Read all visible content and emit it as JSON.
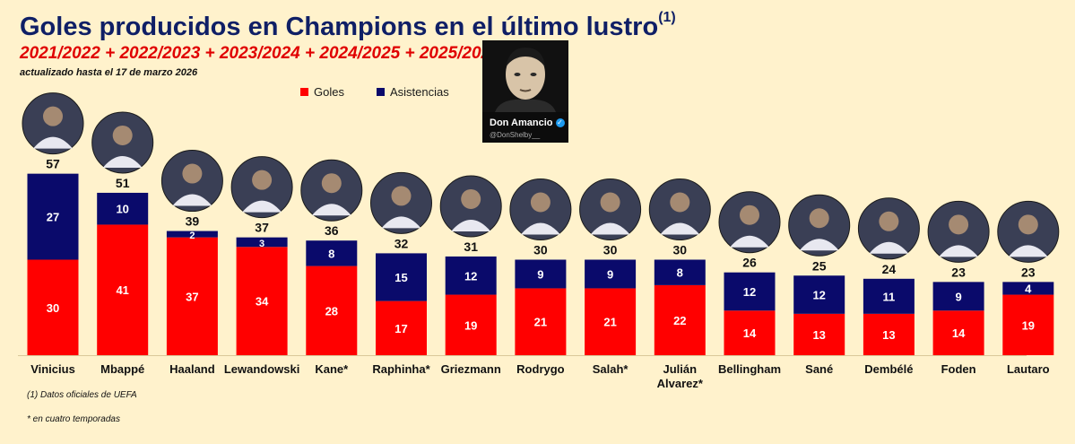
{
  "header": {
    "title": "Goles producidos en Champions en el último lustro",
    "title_mark": "(1)",
    "subtitle": "2021/2022 + 2022/2023 + 2023/2024 + 2024/2025 + 2025/2026",
    "updated": "actualizado hasta el 17 de marzo 2026"
  },
  "brand": {
    "name": "Don Amancio",
    "handle": "@DonShelby__",
    "verified_icon": "verified-check-icon"
  },
  "footnotes": {
    "note1": "(1) Datos oficiales de UEFA",
    "note2": "* en cuatro temporadas"
  },
  "colors": {
    "background": "#fff2cc",
    "goles": "#ff0000",
    "asistencias": "#0a0a6b",
    "title": "#0f1f66",
    "subtitle": "#e00000"
  },
  "chart_data": {
    "type": "bar",
    "stacked": true,
    "categories": [
      "Vinicius",
      "Mbappé",
      "Haaland",
      "Lewandowski",
      "Kane*",
      "Raphinha*",
      "Griezmann",
      "Rodrygo",
      "Salah*",
      "Julián Alvarez*",
      "Bellingham",
      "Sané",
      "Dembélé",
      "Foden",
      "Lautaro"
    ],
    "series": [
      {
        "name": "Goles",
        "color": "#ff0000",
        "values": [
          30,
          41,
          37,
          34,
          28,
          17,
          19,
          21,
          21,
          22,
          14,
          13,
          13,
          14,
          19
        ]
      },
      {
        "name": "Asistencias",
        "color": "#0a0a6b",
        "values": [
          27,
          10,
          2,
          3,
          8,
          15,
          12,
          9,
          9,
          8,
          12,
          12,
          11,
          9,
          4
        ]
      }
    ],
    "totals": [
      57,
      51,
      39,
      37,
      36,
      32,
      31,
      30,
      30,
      30,
      26,
      25,
      24,
      23,
      23
    ],
    "ylim": [
      0,
      57
    ],
    "grid": false,
    "legend_position": "top",
    "category_icon": "player-photo-icon"
  }
}
